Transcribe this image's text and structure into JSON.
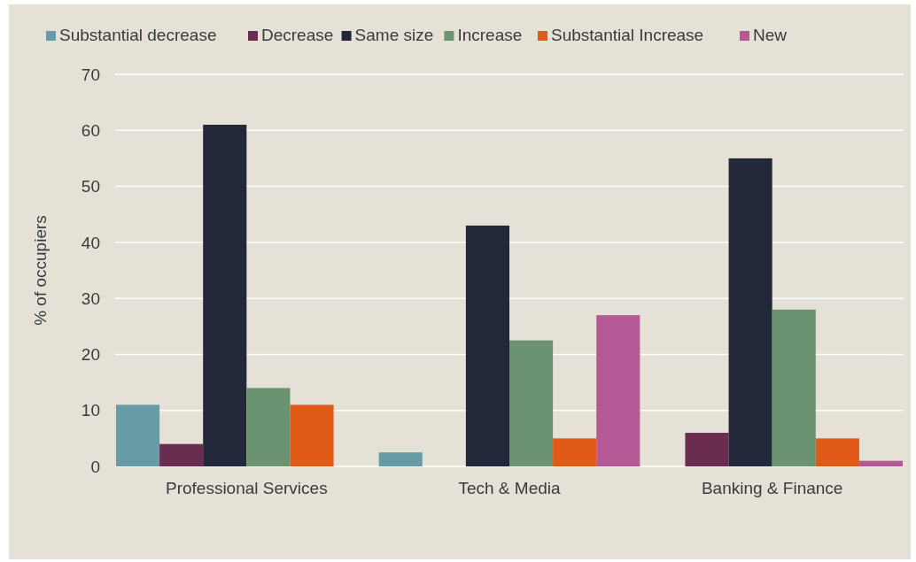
{
  "chart_data": {
    "type": "bar",
    "ylabel": "% of occupiers",
    "categories": [
      "Professional Services",
      "Tech & Media",
      "Banking & Finance"
    ],
    "series": [
      {
        "name": "Substantial decrease",
        "color": "#679ba5",
        "values": [
          11,
          2.5,
          0
        ]
      },
      {
        "name": "Decrease",
        "color": "#6b2d4f",
        "values": [
          4,
          0,
          6
        ]
      },
      {
        "name": "Same size",
        "color": "#23273a",
        "values": [
          61,
          43,
          55
        ]
      },
      {
        "name": "Increase",
        "color": "#6b9371",
        "values": [
          14,
          22.5,
          28
        ]
      },
      {
        "name": "Substantial Increase",
        "color": "#e05a17",
        "values": [
          11,
          5,
          5
        ]
      },
      {
        "name": "New",
        "color": "#b45995",
        "values": [
          0,
          27,
          1
        ]
      }
    ],
    "ylim": [
      0,
      70
    ],
    "yticks": [
      0,
      10,
      20,
      30,
      40,
      50,
      60,
      70
    ],
    "grid": "y",
    "legend": "top left"
  }
}
